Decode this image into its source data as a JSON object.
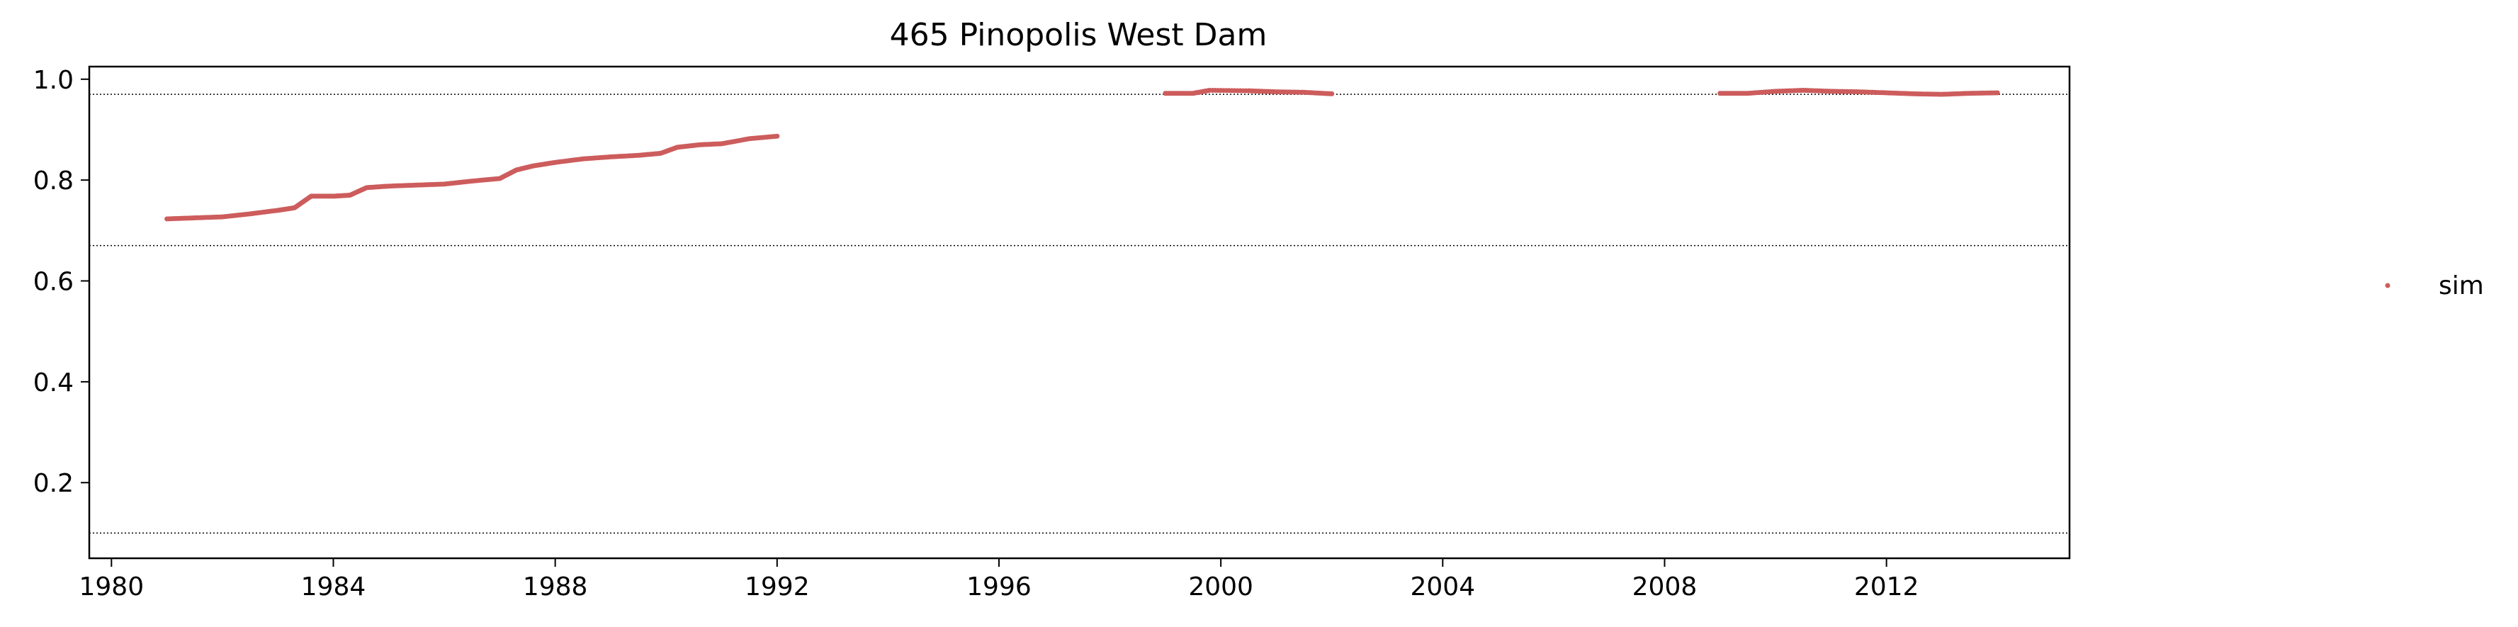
{
  "chart_data": {
    "type": "scatter",
    "title": "465  Pinopolis West Dam",
    "xlabel": "",
    "ylabel": "",
    "xlim": [
      1979.6,
      2015.3
    ],
    "ylim": [
      0.05,
      1.025
    ],
    "x_ticks": [
      1980,
      1984,
      1988,
      1992,
      1996,
      2000,
      2004,
      2008,
      2012
    ],
    "x_tick_labels": [
      "1980",
      "1984",
      "1988",
      "1992",
      "1996",
      "2000",
      "2004",
      "2008",
      "2012"
    ],
    "y_ticks": [
      0.2,
      0.4,
      0.6,
      0.8,
      1.0
    ],
    "y_tick_labels": [
      "0.2",
      "0.4",
      "0.6",
      "0.8",
      "1.0"
    ],
    "reference_lines": [
      0.97,
      0.67,
      0.1
    ],
    "grid": false,
    "legend": {
      "position": "right",
      "entries": [
        "sim"
      ]
    },
    "series": [
      {
        "name": "sim",
        "color": "#cd5c5c",
        "points": [
          [
            1981.0,
            0.723
          ],
          [
            1981.5,
            0.725
          ],
          [
            1982.0,
            0.727
          ],
          [
            1982.5,
            0.733
          ],
          [
            1983.0,
            0.74
          ],
          [
            1983.3,
            0.745
          ],
          [
            1983.6,
            0.768
          ],
          [
            1984.0,
            0.768
          ],
          [
            1984.3,
            0.77
          ],
          [
            1984.6,
            0.785
          ],
          [
            1985.0,
            0.788
          ],
          [
            1985.5,
            0.79
          ],
          [
            1986.0,
            0.792
          ],
          [
            1986.5,
            0.798
          ],
          [
            1987.0,
            0.803
          ],
          [
            1987.3,
            0.82
          ],
          [
            1987.6,
            0.828
          ],
          [
            1988.0,
            0.835
          ],
          [
            1988.5,
            0.842
          ],
          [
            1989.0,
            0.846
          ],
          [
            1989.5,
            0.849
          ],
          [
            1989.9,
            0.853
          ],
          [
            1990.2,
            0.865
          ],
          [
            1990.6,
            0.87
          ],
          [
            1991.0,
            0.872
          ],
          [
            1991.5,
            0.882
          ],
          [
            1992.0,
            0.887
          ],
          [
            1999.0,
            0.972
          ],
          [
            1999.5,
            0.972
          ],
          [
            1999.8,
            0.978
          ],
          [
            2000.5,
            0.977
          ],
          [
            2001.0,
            0.975
          ],
          [
            2001.5,
            0.974
          ],
          [
            2002.0,
            0.971
          ],
          [
            2009.0,
            0.972
          ],
          [
            2009.5,
            0.972
          ],
          [
            2010.0,
            0.976
          ],
          [
            2010.5,
            0.978
          ],
          [
            2011.0,
            0.976
          ],
          [
            2011.5,
            0.975
          ],
          [
            2012.0,
            0.973
          ],
          [
            2012.5,
            0.971
          ],
          [
            2013.0,
            0.97
          ],
          [
            2013.5,
            0.972
          ],
          [
            2014.0,
            0.973
          ]
        ]
      }
    ]
  }
}
